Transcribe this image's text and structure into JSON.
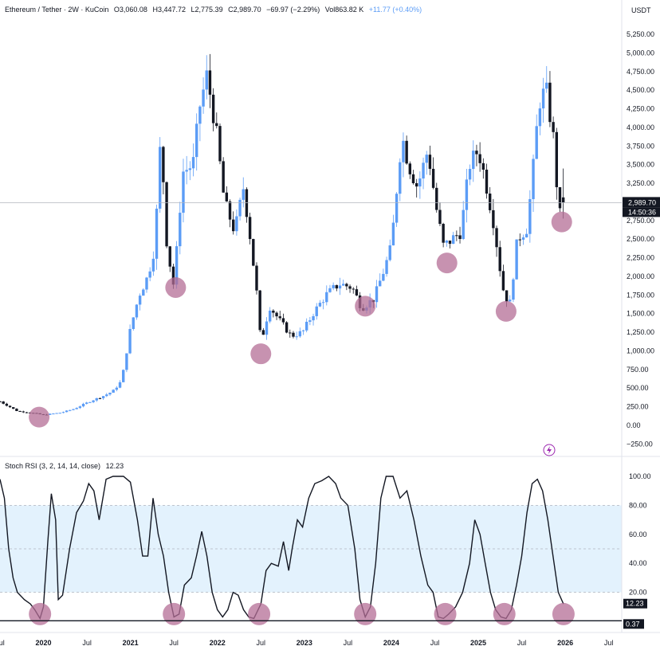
{
  "header": {
    "symbol": "Ethereum / Tether · 2W · KuCoin",
    "open": "O3,060.08",
    "high": "H3,447.72",
    "low": "L2,775.39",
    "close": "C2,989.70",
    "change": "−69.97 (−2.29%)",
    "volume": "Vol863.82 K",
    "ext_change": "+11.77 (+0.40%)",
    "currency": "USDT"
  },
  "price_labels": {
    "last_price": "2,989.70",
    "countdown": "14:50:36"
  },
  "rsi_panel": {
    "title": "Stoch RSI (3, 2, 14, 14, close)",
    "value": "12.23",
    "value_label": "12.23",
    "secondary_label": "0.37"
  },
  "x_axis_labels": [
    "Jul",
    "2020",
    "Jul",
    "2021",
    "Jul",
    "2022",
    "Jul",
    "2023",
    "Jul",
    "2024",
    "Jul",
    "2025",
    "Jul",
    "2026",
    "Jul"
  ],
  "price_axis_labels": [
    "5,250.00",
    "5,000.00",
    "4,750.00",
    "4,500.00",
    "4,250.00",
    "4,000.00",
    "3,750.00",
    "3,500.00",
    "3,250.00",
    "3,000.00",
    "2,750.00",
    "2,500.00",
    "2,250.00",
    "2,000.00",
    "1,750.00",
    "1,500.00",
    "1,250.00",
    "1,000.00",
    "750.00",
    "500.00",
    "250.00",
    "0.00",
    "−250.00"
  ],
  "rsi_axis_labels": [
    "100.00",
    "80.00",
    "60.00",
    "40.00",
    "20.00"
  ],
  "colors": {
    "up": "#5b9cf6",
    "down": "#131722",
    "marker": "#b46e96",
    "band": "#e3f2fd",
    "text": "#131722"
  },
  "chart_data": [
    {
      "type": "candlestick",
      "title": "Ethereum / Tether · 2W · KuCoin",
      "ylabel": "USDT",
      "ylim": [
        -300,
        5400
      ],
      "x_range": [
        2019.5,
        2026.65
      ],
      "x_ticks": [
        2019.5,
        2020.0,
        2020.5,
        2021.0,
        2021.5,
        2022.0,
        2022.5,
        2023.0,
        2023.5,
        2024.0,
        2024.5,
        2025.0,
        2025.5,
        2026.0,
        2026.5
      ],
      "y_ticks": [
        5250,
        5000,
        4750,
        4500,
        4250,
        4000,
        3750,
        3500,
        3250,
        3000,
        2750,
        2500,
        2250,
        2000,
        1750,
        1500,
        1250,
        1000,
        750,
        500,
        250,
        0,
        -250
      ],
      "anchors": [
        [
          2019.5,
          320
        ],
        [
          2019.7,
          190
        ],
        [
          2019.85,
          170
        ],
        [
          2020.0,
          140
        ],
        [
          2020.2,
          170
        ],
        [
          2020.35,
          220
        ],
        [
          2020.55,
          330
        ],
        [
          2020.7,
          400
        ],
        [
          2020.8,
          460
        ],
        [
          2020.9,
          600
        ],
        [
          2021.0,
          1300
        ],
        [
          2021.1,
          1750
        ],
        [
          2021.2,
          2000
        ],
        [
          2021.28,
          2400
        ],
        [
          2021.35,
          3900
        ],
        [
          2021.42,
          2400
        ],
        [
          2021.5,
          1850
        ],
        [
          2021.6,
          3400
        ],
        [
          2021.72,
          3500
        ],
        [
          2021.8,
          4300
        ],
        [
          2021.88,
          4700
        ],
        [
          2021.98,
          4000
        ],
        [
          2022.08,
          3000
        ],
        [
          2022.2,
          2600
        ],
        [
          2022.3,
          3200
        ],
        [
          2022.38,
          2500
        ],
        [
          2022.45,
          1800
        ],
        [
          2022.5,
          1100
        ],
        [
          2022.6,
          1600
        ],
        [
          2022.72,
          1400
        ],
        [
          2022.85,
          1200
        ],
        [
          2022.98,
          1250
        ],
        [
          2023.1,
          1500
        ],
        [
          2023.25,
          1750
        ],
        [
          2023.4,
          1900
        ],
        [
          2023.55,
          1850
        ],
        [
          2023.66,
          1580
        ],
        [
          2023.8,
          1700
        ],
        [
          2023.92,
          2100
        ],
        [
          2024.0,
          2400
        ],
        [
          2024.12,
          3900
        ],
        [
          2024.2,
          3500
        ],
        [
          2024.3,
          3200
        ],
        [
          2024.42,
          3700
        ],
        [
          2024.52,
          2900
        ],
        [
          2024.6,
          2400
        ],
        [
          2024.7,
          2500
        ],
        [
          2024.8,
          2600
        ],
        [
          2024.9,
          3500
        ],
        [
          2025.0,
          3700
        ],
        [
          2025.08,
          3300
        ],
        [
          2025.18,
          2700
        ],
        [
          2025.28,
          1850
        ],
        [
          2025.36,
          1600
        ],
        [
          2025.45,
          2500
        ],
        [
          2025.56,
          2650
        ],
        [
          2025.62,
          3300
        ],
        [
          2025.7,
          4350
        ],
        [
          2025.78,
          4500
        ],
        [
          2025.86,
          3900
        ],
        [
          2025.93,
          2800
        ],
        [
          2026.0,
          2990
        ]
      ],
      "markers": [
        {
          "x": 2019.95,
          "y": 110
        },
        {
          "x": 2021.52,
          "y": 1850
        },
        {
          "x": 2022.5,
          "y": 960
        },
        {
          "x": 2023.7,
          "y": 1600
        },
        {
          "x": 2024.64,
          "y": 2180
        },
        {
          "x": 2025.32,
          "y": 1530
        },
        {
          "x": 2025.96,
          "y": 2730
        }
      ],
      "last_price": 2989.7
    },
    {
      "type": "line",
      "title": "Stoch RSI (3, 2, 14, 14, close)",
      "ylim": [
        0,
        100
      ],
      "y_ticks": [
        100,
        80,
        60,
        40,
        20
      ],
      "band": [
        20,
        80
      ],
      "x_range": [
        2019.5,
        2026.65
      ],
      "series": [
        {
          "values": [
            [
              2019.5,
              98
            ],
            [
              2019.55,
              85
            ],
            [
              2019.6,
              50
            ],
            [
              2019.65,
              30
            ],
            [
              2019.7,
              20
            ],
            [
              2019.78,
              15
            ],
            [
              2019.85,
              12
            ],
            [
              2019.9,
              8
            ],
            [
              2019.96,
              2
            ],
            [
              2020.0,
              10
            ],
            [
              2020.05,
              55
            ],
            [
              2020.09,
              88
            ],
            [
              2020.14,
              70
            ],
            [
              2020.17,
              15
            ],
            [
              2020.22,
              18
            ],
            [
              2020.3,
              50
            ],
            [
              2020.38,
              75
            ],
            [
              2020.46,
              83
            ],
            [
              2020.52,
              95
            ],
            [
              2020.58,
              90
            ],
            [
              2020.64,
              70
            ],
            [
              2020.72,
              98
            ],
            [
              2020.8,
              100
            ],
            [
              2020.92,
              100
            ],
            [
              2021.0,
              96
            ],
            [
              2021.08,
              70
            ],
            [
              2021.14,
              45
            ],
            [
              2021.2,
              45
            ],
            [
              2021.26,
              85
            ],
            [
              2021.32,
              60
            ],
            [
              2021.38,
              45
            ],
            [
              2021.44,
              20
            ],
            [
              2021.5,
              3
            ],
            [
              2021.56,
              5
            ],
            [
              2021.62,
              25
            ],
            [
              2021.7,
              30
            ],
            [
              2021.76,
              45
            ],
            [
              2021.82,
              62
            ],
            [
              2021.88,
              45
            ],
            [
              2021.94,
              20
            ],
            [
              2022.0,
              8
            ],
            [
              2022.06,
              3
            ],
            [
              2022.12,
              8
            ],
            [
              2022.18,
              20
            ],
            [
              2022.24,
              18
            ],
            [
              2022.3,
              8
            ],
            [
              2022.36,
              3
            ],
            [
              2022.42,
              2
            ],
            [
              2022.5,
              12
            ],
            [
              2022.56,
              35
            ],
            [
              2022.62,
              40
            ],
            [
              2022.7,
              38
            ],
            [
              2022.76,
              55
            ],
            [
              2022.82,
              35
            ],
            [
              2022.86,
              50
            ],
            [
              2022.92,
              70
            ],
            [
              2022.98,
              65
            ],
            [
              2023.05,
              85
            ],
            [
              2023.12,
              95
            ],
            [
              2023.2,
              97
            ],
            [
              2023.28,
              100
            ],
            [
              2023.36,
              95
            ],
            [
              2023.42,
              85
            ],
            [
              2023.5,
              80
            ],
            [
              2023.58,
              50
            ],
            [
              2023.64,
              15
            ],
            [
              2023.7,
              3
            ],
            [
              2023.76,
              10
            ],
            [
              2023.82,
              40
            ],
            [
              2023.88,
              85
            ],
            [
              2023.94,
              100
            ],
            [
              2024.02,
              100
            ],
            [
              2024.1,
              85
            ],
            [
              2024.18,
              90
            ],
            [
              2024.26,
              70
            ],
            [
              2024.34,
              45
            ],
            [
              2024.42,
              25
            ],
            [
              2024.48,
              20
            ],
            [
              2024.54,
              3
            ],
            [
              2024.6,
              2
            ],
            [
              2024.66,
              5
            ],
            [
              2024.74,
              10
            ],
            [
              2024.82,
              20
            ],
            [
              2024.9,
              40
            ],
            [
              2024.96,
              70
            ],
            [
              2025.02,
              60
            ],
            [
              2025.08,
              40
            ],
            [
              2025.14,
              20
            ],
            [
              2025.2,
              8
            ],
            [
              2025.26,
              3
            ],
            [
              2025.32,
              2
            ],
            [
              2025.38,
              8
            ],
            [
              2025.44,
              25
            ],
            [
              2025.5,
              45
            ],
            [
              2025.56,
              75
            ],
            [
              2025.62,
              95
            ],
            [
              2025.68,
              98
            ],
            [
              2025.74,
              90
            ],
            [
              2025.8,
              70
            ],
            [
              2025.86,
              45
            ],
            [
              2025.92,
              20
            ],
            [
              2025.98,
              12
            ]
          ]
        }
      ],
      "markers": [
        {
          "x": 2019.96,
          "y": 5
        },
        {
          "x": 2021.5,
          "y": 5
        },
        {
          "x": 2022.48,
          "y": 5
        },
        {
          "x": 2023.7,
          "y": 5
        },
        {
          "x": 2024.62,
          "y": 5
        },
        {
          "x": 2025.3,
          "y": 5
        },
        {
          "x": 2025.98,
          "y": 5
        }
      ],
      "current_value": 12.23,
      "secondary_value": 0.37
    }
  ]
}
